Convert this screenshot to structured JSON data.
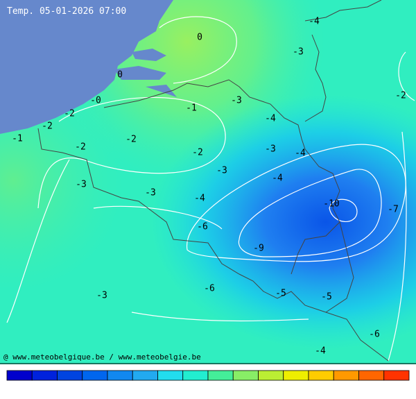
{
  "title": "Temp. 05-01-2026 07:00",
  "credit": "@ www.meteobelgique.be / www.meteobelgie.be",
  "labels": [
    "0",
    "-4",
    "-3",
    "0",
    "-2",
    "-0",
    "-1",
    "-3",
    "-2",
    "-4",
    "-2",
    "-1",
    "-2",
    "-2",
    "-2",
    "-3",
    "-4",
    "-3",
    "-4",
    "-3",
    "-3",
    "-4",
    "-10",
    "-7",
    "-6",
    "-9",
    "-6",
    "-3",
    "-5",
    "-5",
    "-6",
    "-4"
  ]
}
